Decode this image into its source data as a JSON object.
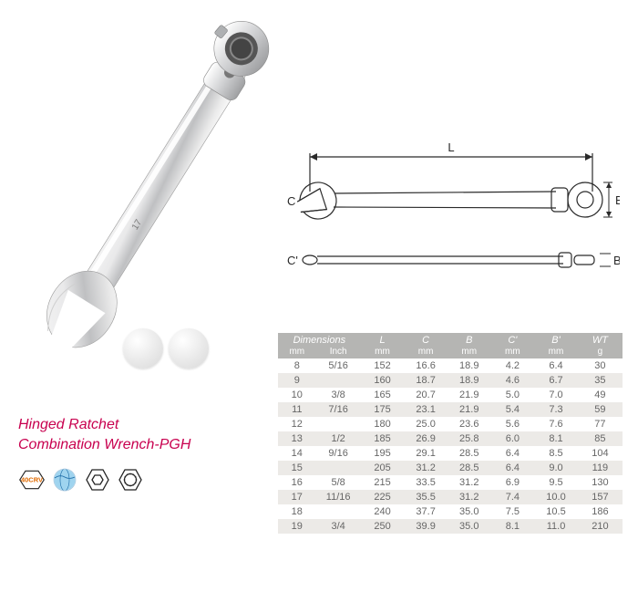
{
  "product": {
    "title_line1": "Hinged Ratchet",
    "title_line2": "Combination  Wrench-PGH",
    "title_color": "#c8004f"
  },
  "badges": {
    "b1_text": "40CRV",
    "b2_name": "globe-icon",
    "b3_name": "hex-icon",
    "b4_name": "spline-icon"
  },
  "diagram": {
    "labels": {
      "L": "L",
      "C": "C",
      "B": "B",
      "Cp": "C'",
      "Bp": "B'"
    }
  },
  "table": {
    "header_bg": "#b5b5b3",
    "alt_row_bg": "#eceae7",
    "top_headers": {
      "dimensions": "Dimensions",
      "L": "L",
      "C": "C",
      "B": "B",
      "Cp": "C'",
      "Bp": "B'",
      "WT": "WT"
    },
    "sub_headers": {
      "mm": "mm",
      "inch": "Inch",
      "L": "mm",
      "C": "mm",
      "B": "mm",
      "Cp": "mm",
      "Bp": "mm",
      "WT": "g"
    },
    "rows": [
      {
        "mm": "8",
        "inch": "5/16",
        "L": "152",
        "C": "16.6",
        "B": "18.9",
        "Cp": "4.2",
        "Bp": "6.4",
        "WT": "30"
      },
      {
        "mm": "9",
        "inch": "",
        "L": "160",
        "C": "18.7",
        "B": "18.9",
        "Cp": "4.6",
        "Bp": "6.7",
        "WT": "35"
      },
      {
        "mm": "10",
        "inch": "3/8",
        "L": "165",
        "C": "20.7",
        "B": "21.9",
        "Cp": "5.0",
        "Bp": "7.0",
        "WT": "49"
      },
      {
        "mm": "11",
        "inch": "7/16",
        "L": "175",
        "C": "23.1",
        "B": "21.9",
        "Cp": "5.4",
        "Bp": "7.3",
        "WT": "59"
      },
      {
        "mm": "12",
        "inch": "",
        "L": "180",
        "C": "25.0",
        "B": "23.6",
        "Cp": "5.6",
        "Bp": "7.6",
        "WT": "77"
      },
      {
        "mm": "13",
        "inch": "1/2",
        "L": "185",
        "C": "26.9",
        "B": "25.8",
        "Cp": "6.0",
        "Bp": "8.1",
        "WT": "85"
      },
      {
        "mm": "14",
        "inch": "9/16",
        "L": "195",
        "C": "29.1",
        "B": "28.5",
        "Cp": "6.4",
        "Bp": "8.5",
        "WT": "104"
      },
      {
        "mm": "15",
        "inch": "",
        "L": "205",
        "C": "31.2",
        "B": "28.5",
        "Cp": "6.4",
        "Bp": "9.0",
        "WT": "119"
      },
      {
        "mm": "16",
        "inch": "5/8",
        "L": "215",
        "C": "33.5",
        "B": "31.2",
        "Cp": "6.9",
        "Bp": "9.5",
        "WT": "130"
      },
      {
        "mm": "17",
        "inch": "11/16",
        "L": "225",
        "C": "35.5",
        "B": "31.2",
        "Cp": "7.4",
        "Bp": "10.0",
        "WT": "157"
      },
      {
        "mm": "18",
        "inch": "",
        "L": "240",
        "C": "37.7",
        "B": "35.0",
        "Cp": "7.5",
        "Bp": "10.5",
        "WT": "186"
      },
      {
        "mm": "19",
        "inch": "3/4",
        "L": "250",
        "C": "39.9",
        "B": "35.0",
        "Cp": "8.1",
        "Bp": "11.0",
        "WT": "210"
      }
    ]
  }
}
